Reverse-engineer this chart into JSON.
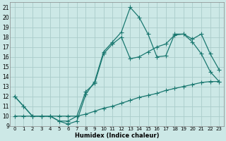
{
  "xlabel": "Humidex (Indice chaleur)",
  "bg_color": "#cce8e6",
  "grid_color": "#aaccca",
  "line_color": "#1a7870",
  "xlim": [
    -0.5,
    23.5
  ],
  "ylim": [
    9,
    21.5
  ],
  "xticks": [
    0,
    1,
    2,
    3,
    4,
    5,
    6,
    7,
    8,
    9,
    10,
    11,
    12,
    13,
    14,
    15,
    16,
    17,
    18,
    19,
    20,
    21,
    22,
    23
  ],
  "yticks": [
    9,
    10,
    11,
    12,
    13,
    14,
    15,
    16,
    17,
    18,
    19,
    20,
    21
  ],
  "line1_x": [
    0,
    1,
    2,
    3,
    4,
    5,
    6,
    7,
    8,
    9,
    10,
    11,
    12,
    13,
    14,
    15,
    16,
    17,
    18,
    19,
    20,
    21,
    22,
    23
  ],
  "line1_y": [
    12,
    11,
    10,
    10,
    10,
    9.5,
    9.2,
    9.5,
    12.2,
    13.5,
    16.5,
    17.5,
    18.5,
    21,
    20,
    18.3,
    16.0,
    16.1,
    18.3,
    18.3,
    17.5,
    16.3,
    14.5,
    13.5
  ],
  "line2_x": [
    0,
    1,
    2,
    3,
    4,
    5,
    6,
    7,
    8,
    9,
    10,
    11,
    12,
    13,
    14,
    15,
    16,
    17,
    18,
    19,
    20,
    21,
    22,
    23
  ],
  "line2_y": [
    12,
    11,
    10,
    10,
    10,
    9.5,
    9.5,
    10,
    12.5,
    13.3,
    16.3,
    17.3,
    18.0,
    15.8,
    16.0,
    16.5,
    17.0,
    17.3,
    18.2,
    18.3,
    17.8,
    18.3,
    16.3,
    14.7
  ],
  "line3_x": [
    0,
    1,
    2,
    3,
    4,
    5,
    6,
    7,
    8,
    9,
    10,
    11,
    12,
    13,
    14,
    15,
    16,
    17,
    18,
    19,
    20,
    21,
    22,
    23
  ],
  "line3_y": [
    10.0,
    10.0,
    10.0,
    10.0,
    10.0,
    10.0,
    10.0,
    10.0,
    10.2,
    10.5,
    10.8,
    11.0,
    11.3,
    11.6,
    11.9,
    12.1,
    12.3,
    12.6,
    12.8,
    13.0,
    13.2,
    13.4,
    13.5,
    13.5
  ]
}
